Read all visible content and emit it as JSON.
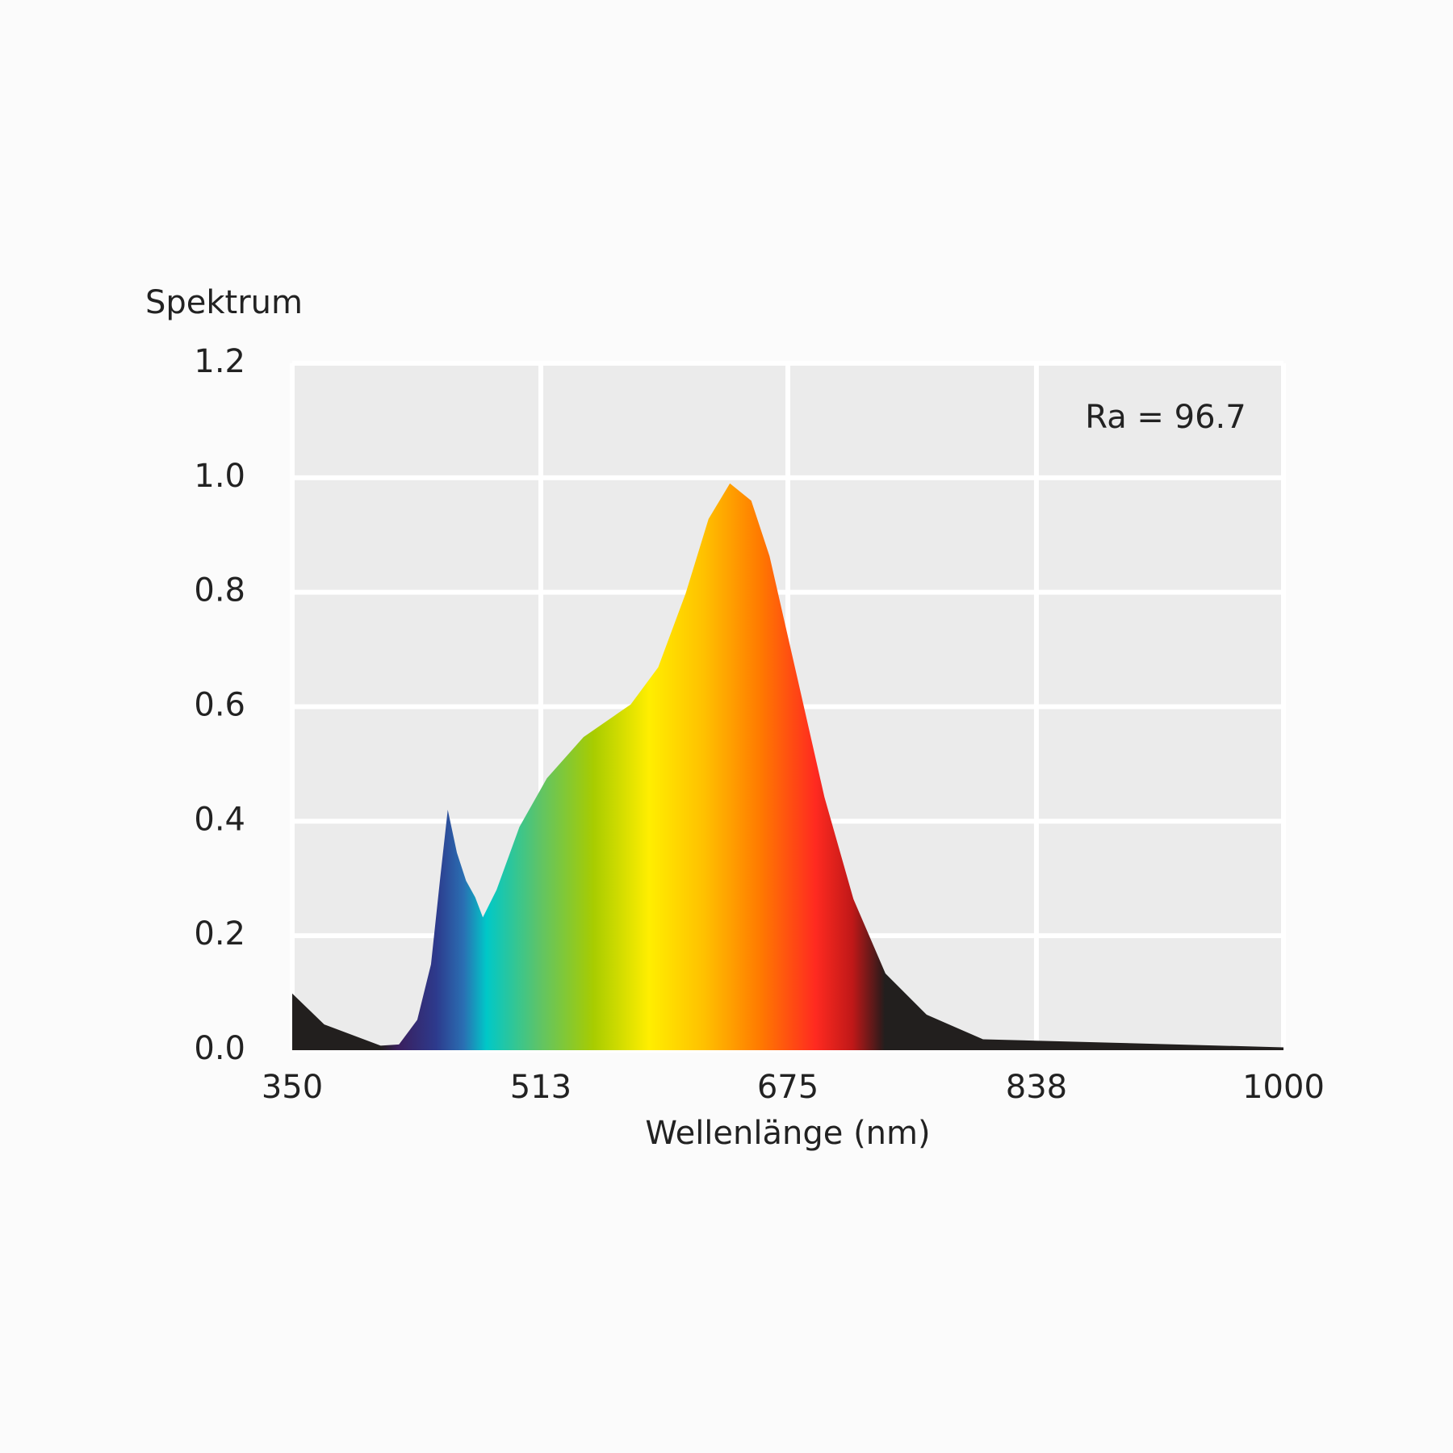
{
  "chart_data": {
    "type": "area",
    "y_label": "Spektrum",
    "x_label": "Wellenlänge (nm)",
    "annotation": "Ra = 96.7",
    "x": [
      350,
      371,
      408,
      420,
      432,
      441,
      447,
      452,
      458,
      464,
      470,
      475,
      484,
      499,
      517,
      541,
      572,
      590,
      608,
      623,
      637,
      651,
      663,
      681,
      699,
      718,
      739,
      766,
      803,
      888,
      1000
    ],
    "values": [
      0.099,
      0.045,
      0.008,
      0.01,
      0.053,
      0.15,
      0.3,
      0.42,
      0.345,
      0.296,
      0.267,
      0.232,
      0.28,
      0.39,
      0.475,
      0.547,
      0.604,
      0.669,
      0.798,
      0.928,
      0.99,
      0.96,
      0.863,
      0.653,
      0.442,
      0.264,
      0.134,
      0.062,
      0.019,
      0.013,
      0.005
    ],
    "xlim": [
      350,
      1000
    ],
    "xticks": [
      350,
      513,
      675,
      838,
      1000
    ],
    "ylim": [
      0,
      1.2
    ],
    "yticks": [
      {
        "value": 0,
        "label": "0.0"
      },
      0.2,
      0.4,
      0.6,
      0.8,
      {
        "value": 1,
        "label": "1.0"
      },
      1.2
    ],
    "grid": true
  }
}
